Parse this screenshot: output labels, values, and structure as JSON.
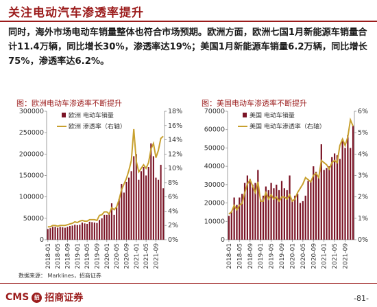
{
  "header": {
    "title": "关注电动汽车渗透率提升"
  },
  "body_text": "同时，海外市场电动车销量整体也符合市场预期。欧洲方面，欧洲七国1月新能源车销量合计11.4万辆，同比增长30%，渗透率达19%；美国1月新能源车销量6.2万辆，同比增长75%，渗透率达6.2%。",
  "source": "数据来源： Marklines，招商证券",
  "footer": {
    "logo_text": "招商证券",
    "logo_prefix": "CMS",
    "page": "-81-"
  },
  "colors": {
    "bar": "#7b1426",
    "line": "#c8a02e",
    "accent": "#9b1b1b"
  },
  "chart_data": [
    {
      "type": "bar",
      "title": "图：欧洲电动车渗透率不断提升",
      "ylim": [
        0,
        300000
      ],
      "y2lim": [
        0,
        18
      ],
      "yticks": [
        "0",
        "50000",
        "100000",
        "150000",
        "200000",
        "250000",
        "300000"
      ],
      "y2ticks": [
        "0%",
        "2%",
        "4%",
        "6%",
        "8%",
        "10%",
        "12%",
        "14%",
        "16%",
        "18%"
      ],
      "x_tick_labels": [
        "2018-01",
        "2018-05",
        "2018-09",
        "2019-01",
        "2019-05",
        "2019-09",
        "2020-01",
        "2020-05",
        "2020-09",
        "2021-01",
        "2021-05",
        "2021-09"
      ],
      "grid": false,
      "legend": "top-left",
      "series": [
        {
          "name": "欧洲 电动车销量",
          "kind": "bar",
          "axis": "left",
          "values": [
            25000,
            27000,
            30000,
            30000,
            28000,
            30000,
            29000,
            28000,
            30000,
            32000,
            33000,
            35000,
            34000,
            35000,
            40000,
            38000,
            37000,
            42000,
            41000,
            40000,
            39000,
            46000,
            50000,
            58000,
            58000,
            60000,
            85000,
            58000,
            75000,
            95000,
            130000,
            110000,
            135000,
            145000,
            160000,
            195000,
            200000,
            140000,
            160000,
            170000,
            150000,
            170000,
            225000,
            195000,
            145000,
            140000,
            175000,
            120000
          ]
        },
        {
          "name": "欧洲 渗透率（右轴）",
          "kind": "line",
          "axis": "right",
          "values": [
            1.8,
            1.8,
            2.0,
            2.0,
            1.9,
            2.0,
            2.0,
            2.0,
            2.1,
            2.2,
            2.3,
            2.5,
            2.4,
            2.6,
            2.7,
            2.6,
            2.6,
            2.8,
            2.8,
            2.8,
            2.7,
            3.4,
            3.5,
            3.9,
            3.9,
            3.6,
            4.5,
            4.2,
            4.6,
            5.6,
            7.0,
            7.8,
            8.6,
            9.7,
            11.1,
            15.5,
            11.0,
            9.5,
            10.0,
            10.5,
            10.0,
            10.8,
            12.7,
            13.5,
            11.5,
            12.5,
            14.2,
            14.5
          ]
        }
      ]
    },
    {
      "type": "bar",
      "title": "图：美国电动车渗透率不断提升",
      "ylim": [
        0,
        70000
      ],
      "y2lim": [
        0,
        6
      ],
      "yticks": [
        "0",
        "10000",
        "20000",
        "30000",
        "40000",
        "50000",
        "60000",
        "70000"
      ],
      "y2ticks": [
        "0%",
        "1%",
        "2%",
        "3%",
        "4%",
        "5%",
        "6%"
      ],
      "x_tick_labels": [
        "2018-01",
        "2018-05",
        "2018-09",
        "2019-01",
        "2019-05",
        "2019-09",
        "2020-01",
        "2020-05",
        "2020-09",
        "2021-01",
        "2021-05",
        "2021-09"
      ],
      "grid": false,
      "legend": "top-left",
      "series": [
        {
          "name": "美国 电动车销量",
          "kind": "bar",
          "axis": "left",
          "values": [
            13000,
            15000,
            23000,
            19000,
            23000,
            25000,
            31000,
            35000,
            33000,
            30000,
            31000,
            38000,
            22000,
            24000,
            29000,
            27000,
            31000,
            28000,
            30000,
            27000,
            32000,
            28000,
            27000,
            35000,
            21000,
            24000,
            25000,
            20000,
            21000,
            24000,
            32000,
            32000,
            40000,
            37000,
            34000,
            52000,
            38000,
            39000,
            40000,
            45000,
            47000,
            46000,
            44000,
            55000,
            50000,
            57000,
            50000,
            62000
          ]
        },
        {
          "name": "美国 电动车渗透率（右轴）",
          "kind": "line",
          "axis": "right",
          "values": [
            1.2,
            1.3,
            1.6,
            1.4,
            1.6,
            1.7,
            2.2,
            2.6,
            2.8,
            2.5,
            2.2,
            2.7,
            1.8,
            1.8,
            2.2,
            1.9,
            2.1,
            1.9,
            2.0,
            1.8,
            2.0,
            2.0,
            1.9,
            2.1,
            1.8,
            1.9,
            2.2,
            2.4,
            2.6,
            2.9,
            2.8,
            2.7,
            3.0,
            3.1,
            2.9,
            3.7,
            3.6,
            3.5,
            3.3,
            3.6,
            3.7,
            3.6,
            4.4,
            4.7,
            4.4,
            4.8,
            5.6,
            5.3
          ]
        }
      ]
    }
  ]
}
